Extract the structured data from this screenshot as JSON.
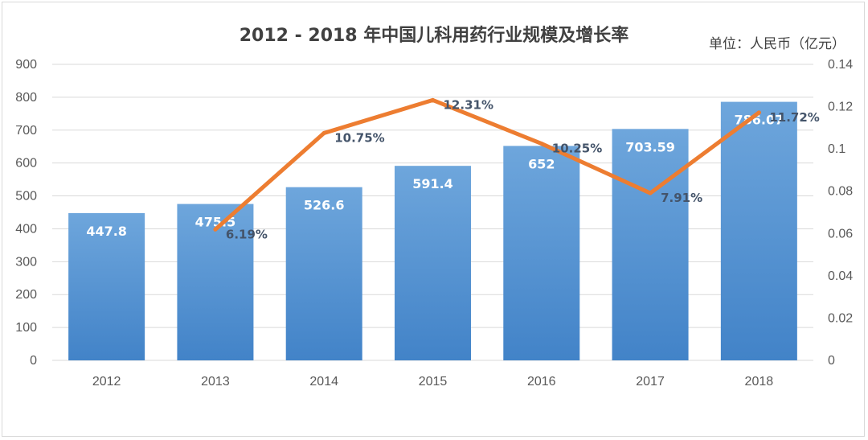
{
  "chart_data": {
    "type": "bar",
    "title": "2012 - 2018 年中国儿科用药行业规模及增长率",
    "unit_note": "单位：人民币（亿元）",
    "categories": [
      "2012",
      "2013",
      "2014",
      "2015",
      "2016",
      "2017",
      "2018"
    ],
    "series": [
      {
        "type": "bar",
        "axis": "left",
        "values": [
          447.8,
          475.5,
          526.6,
          591.4,
          652,
          703.59,
          786.07
        ],
        "labels": [
          "447.8",
          "475.5",
          "526.6",
          "591.4",
          "652",
          "703.59",
          "786.07"
        ],
        "color": "#5b9bd5"
      },
      {
        "type": "line",
        "axis": "right",
        "points": [
          {
            "x": "2013",
            "y": 0.0619
          },
          {
            "x": "2014",
            "y": 0.1075
          },
          {
            "x": "2015",
            "y": 0.1231
          },
          {
            "x": "2016",
            "y": 0.1025
          },
          {
            "x": "2017",
            "y": 0.0791
          },
          {
            "x": "2018",
            "y": 0.1172
          }
        ],
        "labels": [
          "6.19%",
          "10.75%",
          "12.31%",
          "10.25%",
          "7.91%",
          "11.72%"
        ],
        "color": "#ed7d31"
      }
    ],
    "yleft": {
      "lim": [
        0,
        900
      ],
      "ticks": [
        "0",
        "100",
        "200",
        "300",
        "400",
        "500",
        "600",
        "700",
        "800",
        "900"
      ]
    },
    "yright": {
      "lim": [
        0,
        0.14
      ],
      "ticks": [
        "0",
        "0.02",
        "0.04",
        "0.06",
        "0.08",
        "0.1",
        "0.12",
        "0.14"
      ]
    },
    "grid": true,
    "legend": "none"
  }
}
